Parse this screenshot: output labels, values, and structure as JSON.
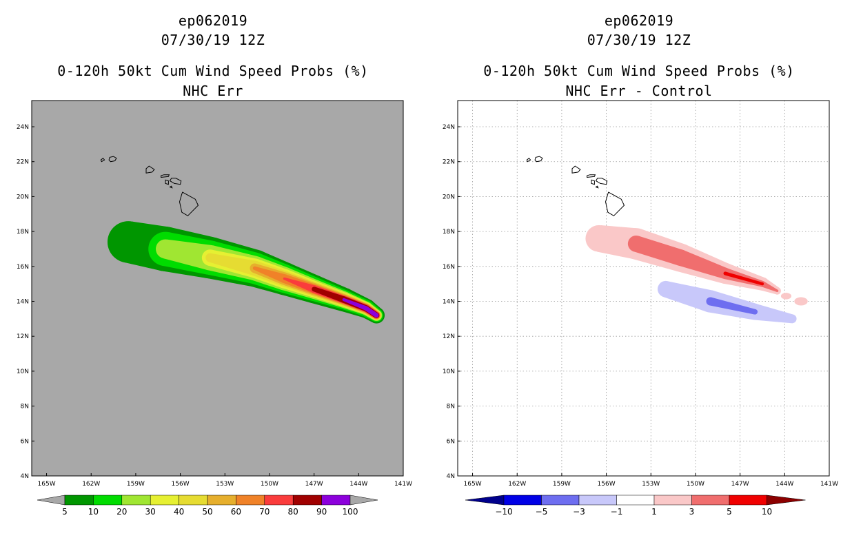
{
  "chart_data": [
    {
      "type": "heatmap",
      "storm_id": "ep062019",
      "datetime": "07/30/19 12Z",
      "title": "0-120h 50kt Cum Wind Speed Probs (%)",
      "subtitle": "NHC Err",
      "lon_range": [
        -166,
        -141
      ],
      "lat_range": [
        4,
        25.5
      ],
      "x_ticks": [
        "165W",
        "162W",
        "159W",
        "156W",
        "153W",
        "150W",
        "147W",
        "144W",
        "141W"
      ],
      "y_ticks": [
        "4N",
        "6N",
        "8N",
        "10N",
        "12N",
        "14N",
        "16N",
        "18N",
        "20N",
        "22N",
        "24N"
      ],
      "grid": false,
      "background_color": "#a8a8a8",
      "colorbar": {
        "labels": [
          "5",
          "10",
          "20",
          "30",
          "40",
          "50",
          "60",
          "70",
          "80",
          "90",
          "100"
        ],
        "colors": [
          "#009600",
          "#00dc00",
          "#a0e632",
          "#e6f032",
          "#e6dc32",
          "#e6af2d",
          "#f08228",
          "#fa3c3c",
          "#a00000",
          "#8c00dc"
        ]
      },
      "probability_swath": {
        "track": [
          [
            -159.5,
            17.4
          ],
          [
            -157,
            17.0
          ],
          [
            -154,
            16.5
          ],
          [
            -151,
            15.9
          ],
          [
            -149,
            15.3
          ],
          [
            -147,
            14.7
          ],
          [
            -145,
            14.1
          ],
          [
            -143.5,
            13.6
          ],
          [
            -142.8,
            13.2
          ]
        ],
        "levels": [
          {
            "min": 5,
            "color_index": 0,
            "half_width": [
              1.4,
              1.5,
              1.4,
              1.25,
              1.1,
              0.95,
              0.8,
              0.65,
              0.55
            ]
          },
          {
            "min": 10,
            "color_index": 1,
            "half_width": [
              0,
              1.15,
              1.15,
              1.05,
              0.95,
              0.8,
              0.65,
              0.55,
              0.45
            ]
          },
          {
            "min": 20,
            "color_index": 2,
            "half_width": [
              0,
              0.65,
              0.85,
              0.82,
              0.78,
              0.65,
              0.55,
              0.45,
              0.38
            ]
          },
          {
            "min": 30,
            "color_index": 3,
            "half_width": [
              0,
              0,
              0.55,
              0.65,
              0.65,
              0.55,
              0.48,
              0.4,
              0.33
            ]
          },
          {
            "min": 40,
            "color_index": 4,
            "half_width": [
              0,
              0,
              0.3,
              0.5,
              0.52,
              0.48,
              0.42,
              0.36,
              0.3
            ]
          },
          {
            "min": 50,
            "color_index": 5,
            "half_width": [
              0,
              0,
              0,
              0.32,
              0.42,
              0.4,
              0.36,
              0.32,
              0.27
            ]
          },
          {
            "min": 60,
            "color_index": 6,
            "half_width": [
              0,
              0,
              0,
              0.12,
              0.3,
              0.32,
              0.3,
              0.28,
              0.25
            ]
          },
          {
            "min": 70,
            "color_index": 7,
            "half_width": [
              0,
              0,
              0,
              0,
              0.08,
              0.26,
              0.26,
              0.25,
              0.22
            ]
          },
          {
            "min": 80,
            "color_index": 8,
            "half_width": [
              0,
              0,
              0,
              0,
              0,
              0.16,
              0.22,
              0.21,
              0.19
            ]
          },
          {
            "min": 90,
            "color_index": 9,
            "half_width": [
              0,
              0,
              0,
              0,
              0,
              0,
              0.1,
              0.15,
              0.15
            ]
          }
        ]
      }
    },
    {
      "type": "heatmap",
      "storm_id": "ep062019",
      "datetime": "07/30/19 12Z",
      "title": "0-120h 50kt Cum Wind Speed Probs (%)",
      "subtitle": "NHC Err - Control",
      "lon_range": [
        -166,
        -141
      ],
      "lat_range": [
        4,
        25.5
      ],
      "x_ticks": [
        "165W",
        "162W",
        "159W",
        "156W",
        "153W",
        "150W",
        "147W",
        "144W",
        "141W"
      ],
      "y_ticks": [
        "4N",
        "6N",
        "8N",
        "10N",
        "12N",
        "14N",
        "16N",
        "18N",
        "20N",
        "22N",
        "24N"
      ],
      "grid": true,
      "background_color": "#ffffff",
      "colorbar": {
        "labels": [
          "-10",
          "-5",
          "-3",
          "-1",
          "1",
          "3",
          "5",
          "10"
        ],
        "colors": [
          "#00008c",
          "#0000e6",
          "#6e6ef0",
          "#c8c8fa",
          "#ffffff",
          "#fac8c8",
          "#f06e6e",
          "#f00000",
          "#8c0000"
        ]
      },
      "positive_anomaly": {
        "track": [
          [
            -156.5,
            17.6
          ],
          [
            -154,
            17.3
          ],
          [
            -151,
            16.5
          ],
          [
            -148,
            15.6
          ],
          [
            -145.5,
            15.0
          ],
          [
            -144.5,
            14.6
          ]
        ],
        "levels": [
          {
            "min": 1,
            "color_index": 5,
            "half_width": [
              0.9,
              1.05,
              0.95,
              0.7,
              0.45,
              0.25
            ]
          },
          {
            "min": 3,
            "color_index": 6,
            "half_width": [
              0,
              0.55,
              0.55,
              0.38,
              0.2,
              0.08
            ]
          },
          {
            "min": 5,
            "color_index": 7,
            "half_width": [
              0,
              0,
              0,
              0.12,
              0.1,
              0
            ]
          }
        ],
        "extra_blobs": [
          [
            -142.9,
            14.0,
            0.45,
            0.28
          ],
          [
            -143.9,
            14.3,
            0.35,
            0.22
          ]
        ]
      },
      "negative_anomaly": {
        "track": [
          [
            -152,
            14.7
          ],
          [
            -149,
            14.0
          ],
          [
            -146,
            13.4
          ],
          [
            -143.5,
            13.0
          ]
        ],
        "levels": [
          {
            "min": 1,
            "color_index": 3,
            "half_width": [
              0.55,
              0.75,
              0.55,
              0.3
            ]
          },
          {
            "min": 3,
            "color_index": 2,
            "half_width": [
              0,
              0.28,
              0.18,
              0
            ]
          }
        ]
      }
    }
  ],
  "islands": [
    [
      [
        -161.3,
        22.0
      ],
      [
        -161.1,
        22.1
      ],
      [
        -161.2,
        22.2
      ],
      [
        -161.35,
        22.1
      ]
    ],
    [
      [
        -160.7,
        22.0
      ],
      [
        -160.4,
        22.05
      ],
      [
        -160.3,
        22.2
      ],
      [
        -160.5,
        22.3
      ],
      [
        -160.75,
        22.25
      ],
      [
        -160.8,
        22.1
      ]
    ],
    [
      [
        -158.3,
        21.35
      ],
      [
        -157.9,
        21.4
      ],
      [
        -157.75,
        21.55
      ],
      [
        -158.1,
        21.75
      ],
      [
        -158.3,
        21.6
      ]
    ],
    [
      [
        -157.3,
        21.1
      ],
      [
        -156.8,
        21.15
      ],
      [
        -156.75,
        21.25
      ],
      [
        -157.1,
        21.25
      ],
      [
        -157.3,
        21.2
      ]
    ],
    [
      [
        -156.7,
        20.9
      ],
      [
        -156.4,
        20.75
      ],
      [
        -156.0,
        20.7
      ],
      [
        -155.95,
        20.9
      ],
      [
        -156.3,
        21.05
      ],
      [
        -156.6,
        21.05
      ]
    ],
    [
      [
        -157.0,
        20.75
      ],
      [
        -156.8,
        20.7
      ],
      [
        -156.8,
        20.9
      ],
      [
        -157.0,
        20.95
      ]
    ],
    [
      [
        -156.7,
        20.55
      ],
      [
        -156.55,
        20.5
      ],
      [
        -156.6,
        20.6
      ]
    ],
    [
      [
        -155.85,
        20.25
      ],
      [
        -155.0,
        19.85
      ],
      [
        -154.8,
        19.5
      ],
      [
        -155.5,
        18.9
      ],
      [
        -155.9,
        19.1
      ],
      [
        -156.05,
        19.7
      ],
      [
        -155.9,
        20.15
      ]
    ]
  ]
}
